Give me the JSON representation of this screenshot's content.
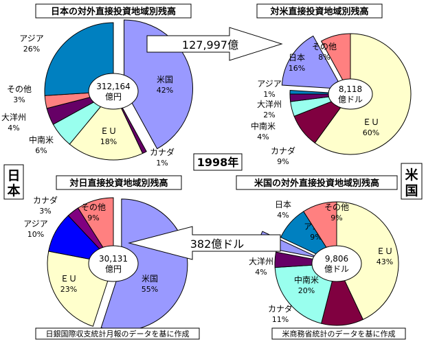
{
  "year_label": "1998年",
  "side_label_japan": "日本",
  "side_label_us": "米国",
  "arrows": [
    {
      "label": "127,997億"
    },
    {
      "label": "382億ドル"
    }
  ],
  "notes": [
    "日銀国際収支統計月報のデータを基に作成",
    "米商務省統計のデータを基に作成"
  ],
  "chart_data": [
    {
      "type": "pie",
      "title": "日本の対外直接投資地域別残高",
      "center_label": [
        "312,164",
        "億円"
      ],
      "slices": [
        {
          "name": "米国",
          "value": 42,
          "color": "#9999ff",
          "exploded": true
        },
        {
          "name": "カナダ",
          "value": 1,
          "color": "#660066",
          "exploded": false
        },
        {
          "name": "ＥＵ",
          "value": 18,
          "color": "#ffffcc",
          "exploded": false
        },
        {
          "name": "中南米",
          "value": 6,
          "color": "#99ffee",
          "exploded": false
        },
        {
          "name": "大洋州",
          "value": 4,
          "color": "#660066",
          "exploded": false
        },
        {
          "name": "その他",
          "value": 3,
          "color": "#ff8080",
          "exploded": false
        },
        {
          "name": "アジア",
          "value": 26,
          "color": "#0080c0",
          "exploded": false
        }
      ]
    },
    {
      "type": "pie",
      "title": "対米直接投資地域別残高",
      "center_label": [
        "8,118",
        "億ドル"
      ],
      "slices": [
        {
          "name": "ＥＵ",
          "value": 60,
          "color": "#ffffcc",
          "exploded": false
        },
        {
          "name": "カナダ",
          "value": 9,
          "color": "#800040",
          "exploded": false
        },
        {
          "name": "中南米",
          "value": 4,
          "color": "#99ffee",
          "exploded": false
        },
        {
          "name": "大洋州",
          "value": 2,
          "color": "#660066",
          "exploded": false
        },
        {
          "name": "アジア",
          "value": 1,
          "color": "#0080c0",
          "exploded": false
        },
        {
          "name": "日本",
          "value": 16,
          "color": "#9999ff",
          "exploded": true
        },
        {
          "name": "その他",
          "value": 8,
          "color": "#ff8080",
          "exploded": false
        }
      ]
    },
    {
      "type": "pie",
      "title": "対日直接投資地域別残高",
      "center_label": [
        "30,131",
        "億円"
      ],
      "slices": [
        {
          "name": "米国",
          "value": 55,
          "color": "#9999ff",
          "exploded": true
        },
        {
          "name": "ＥＵ",
          "value": 23,
          "color": "#ffffcc",
          "exploded": false
        },
        {
          "name": "アジア",
          "value": 10,
          "color": "#0000ff",
          "exploded": false
        },
        {
          "name": "カナダ",
          "value": 3,
          "color": "#800080",
          "exploded": false
        },
        {
          "name": "その他",
          "value": 9,
          "color": "#ff8080",
          "exploded": false
        }
      ]
    },
    {
      "type": "pie",
      "title": "米国の対外直接投資地域別残高",
      "center_label": [
        "9,806",
        "億ドル"
      ],
      "slices": [
        {
          "name": "ＥＵ",
          "value": 43,
          "color": "#ffffcc",
          "exploded": false
        },
        {
          "name": "カナダ",
          "value": 11,
          "color": "#800040",
          "exploded": false
        },
        {
          "name": "中南米",
          "value": 20,
          "color": "#99ffee",
          "exploded": false
        },
        {
          "name": "大洋州",
          "value": 4,
          "color": "#660066",
          "exploded": false
        },
        {
          "name": "日本",
          "value": 4,
          "color": "#9999ff",
          "exploded": true
        },
        {
          "name": "アジア",
          "value": 9,
          "color": "#0080c0",
          "exploded": false
        },
        {
          "name": "その他",
          "value": 9,
          "color": "#ff8080",
          "exploded": false
        }
      ]
    }
  ]
}
